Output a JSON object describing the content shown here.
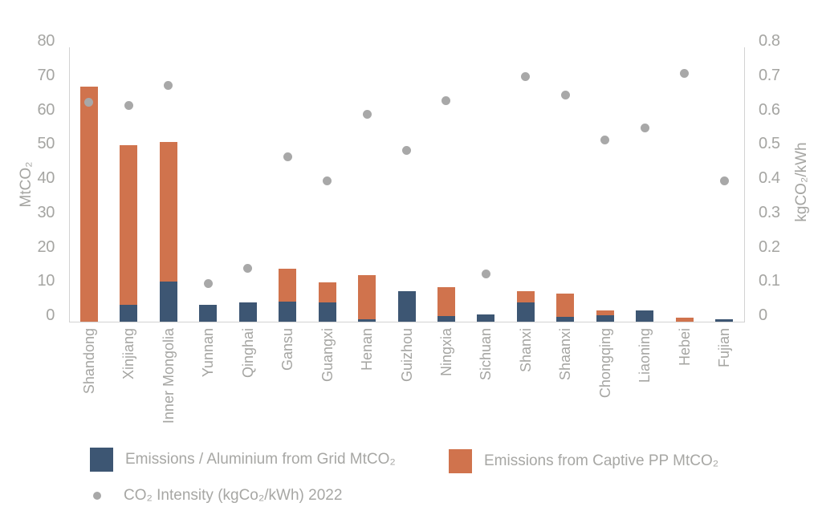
{
  "colors": {
    "bar_grid": "#3d5673",
    "bar_captive": "#d0734d",
    "intensity_dot": "#a8a8a8",
    "axis_text": "#a5a5a2",
    "axis_line": "#d2d2d2"
  },
  "chart_data": {
    "type": "bar",
    "subtype": "stacked-bars-with-scatter-overlay",
    "categories": [
      "Shandong",
      "Xinjiang",
      "Inner Mongolia",
      "Yunnan",
      "Qinghai",
      "Gansu",
      "Guangxi",
      "Henan",
      "Guizhou",
      "Ningxia",
      "Sichuan",
      "Shanxi",
      "Shaanxi",
      "Chongqing",
      "Liaoning",
      "Hebei",
      "Fujian"
    ],
    "series": [
      {
        "name": "Emissions / Aluminium from Grid MtCO₂",
        "type": "bar",
        "axis": "left",
        "values": [
          0,
          5,
          11.7,
          4.8,
          5.5,
          5.8,
          5.6,
          0.8,
          8.8,
          1.6,
          2.1,
          5.7,
          1.5,
          1.9,
          3.3,
          0,
          0.6
        ]
      },
      {
        "name": "Emissions from Captive PP MtCO₂",
        "type": "bar",
        "axis": "left",
        "values": [
          68.5,
          46.5,
          40.7,
          0,
          0,
          9.7,
          5.9,
          12.8,
          0,
          8.5,
          0,
          3.2,
          6.6,
          1.4,
          0,
          1.2,
          0
        ]
      },
      {
        "name": "CO₂ Intensity (kgCo₂/kWh) 2022",
        "type": "scatter",
        "axis": "right",
        "values": [
          0.64,
          0.63,
          0.69,
          0.11,
          0.155,
          0.48,
          0.41,
          0.605,
          0.5,
          0.645,
          0.14,
          0.715,
          0.66,
          0.53,
          0.565,
          0.725,
          0.41
        ]
      }
    ],
    "left_axis": {
      "label": "MtCO₂",
      "min": 0,
      "max": 80,
      "step": 10,
      "ticks": [
        "0",
        "10",
        "20",
        "30",
        "40",
        "50",
        "60",
        "70",
        "80"
      ]
    },
    "right_axis": {
      "label": "kgCO₂/kWh",
      "min": 0,
      "max": 0.8,
      "step": 0.1,
      "ticks": [
        "0",
        "0.1",
        "0.2",
        "0.3",
        "0.4",
        "0.5",
        "0.6",
        "0.7",
        "0.8"
      ]
    },
    "legend_position": "bottom-left",
    "grid": false
  }
}
